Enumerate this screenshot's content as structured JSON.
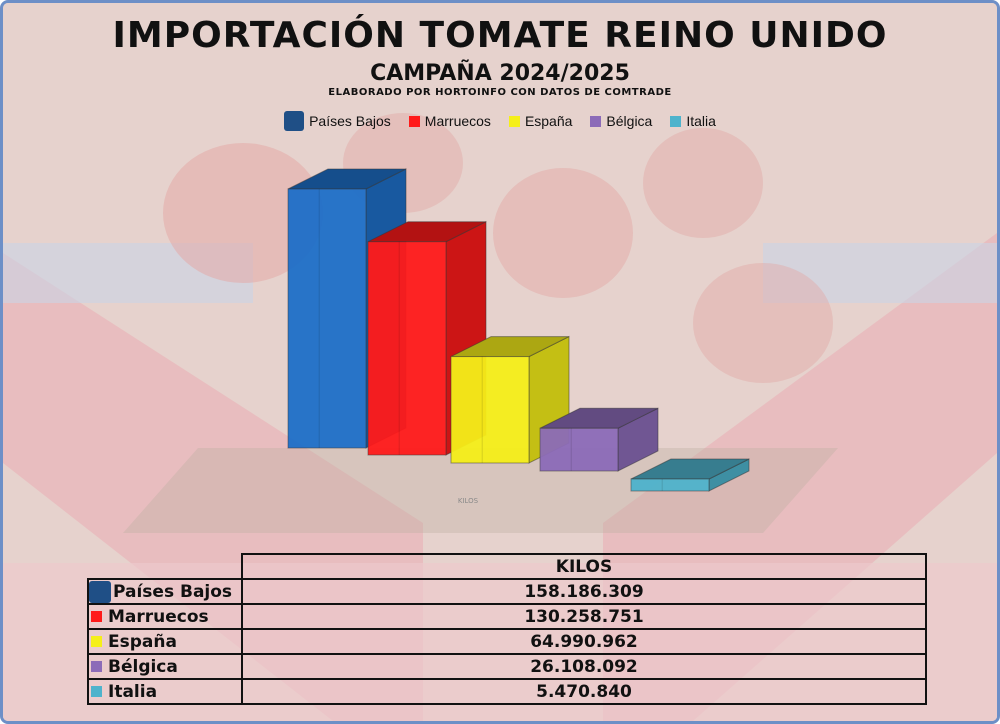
{
  "title": "IMPORTACIÓN TOMATE REINO UNIDO",
  "subtitle": "CAMPAÑA 2024/2025",
  "source_note": "ELABORADO POR HORTOINFO CON DATOS DE COMTRADE",
  "chart_data": {
    "type": "bar",
    "title": "IMPORTACIÓN TOMATE REINO UNIDO",
    "subtitle": "CAMPAÑA 2024/2025",
    "xlabel": "KILOS",
    "ylabel": "",
    "categories": [
      "Países Bajos",
      "Marruecos",
      "España",
      "Bélgica",
      "Italia"
    ],
    "values": [
      158186309,
      130258751,
      64990962,
      26108092,
      5470840
    ],
    "value_labels": [
      "158.186.309",
      "130.258.751",
      "64.990.962",
      "26.108.092",
      "5.470.840"
    ],
    "colors": [
      "#1e6fc8",
      "#ff1a1a",
      "#f5ef19",
      "#8c6bb8",
      "#4eb3cc"
    ],
    "style": "3d-bar",
    "legend_position": "top",
    "grid": false,
    "ylim": [
      0,
      160000000
    ]
  },
  "table": {
    "header": "KILOS"
  }
}
